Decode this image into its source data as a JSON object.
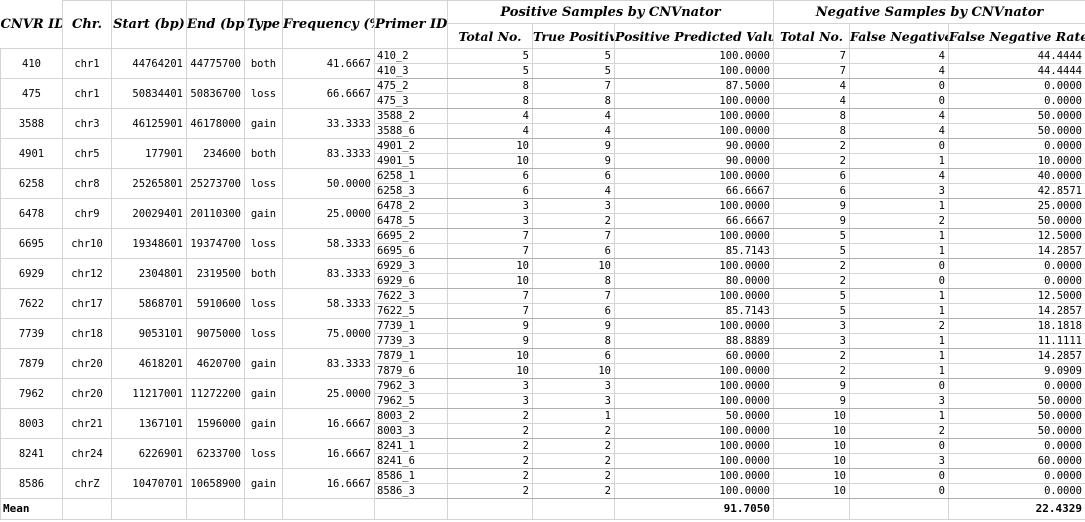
{
  "headers": {
    "cnvr_id": "CNVR ID",
    "chr": "Chr.",
    "start": "Start (bp)",
    "end": "End (bp)",
    "type": "Type",
    "frequency": "Frequency (%)",
    "primer_id": "Primer ID",
    "positive_group": "Positive Samples by CNVnator",
    "negative_group": "Negative Samples by CNVnator",
    "pos_total": "Total No.",
    "true_positive": "True Positive",
    "ppv": "Positive Predicted Value (%)",
    "neg_total": "Total No.",
    "false_negative": "False Negative",
    "fnr": "False Negative Rate(%)"
  },
  "rows": [
    {
      "id": "410",
      "chr": "chr1",
      "start": "44764201",
      "end": "44775700",
      "type": "both",
      "freq": "41.6667",
      "primers": [
        {
          "p": "410_2",
          "pt": "5",
          "tp": "5",
          "ppv": "100.0000",
          "nt": "7",
          "fn": "4",
          "fnr": "44.4444"
        },
        {
          "p": "410_3",
          "pt": "5",
          "tp": "5",
          "ppv": "100.0000",
          "nt": "7",
          "fn": "4",
          "fnr": "44.4444"
        }
      ]
    },
    {
      "id": "475",
      "chr": "chr1",
      "start": "50834401",
      "end": "50836700",
      "type": "loss",
      "freq": "66.6667",
      "primers": [
        {
          "p": "475_2",
          "pt": "8",
          "tp": "7",
          "ppv": "87.5000",
          "nt": "4",
          "fn": "0",
          "fnr": "0.0000"
        },
        {
          "p": "475_3",
          "pt": "8",
          "tp": "8",
          "ppv": "100.0000",
          "nt": "4",
          "fn": "0",
          "fnr": "0.0000"
        }
      ]
    },
    {
      "id": "3588",
      "chr": "chr3",
      "start": "46125901",
      "end": "46178000",
      "type": "gain",
      "freq": "33.3333",
      "primers": [
        {
          "p": "3588_2",
          "pt": "4",
          "tp": "4",
          "ppv": "100.0000",
          "nt": "8",
          "fn": "4",
          "fnr": "50.0000"
        },
        {
          "p": "3588_6",
          "pt": "4",
          "tp": "4",
          "ppv": "100.0000",
          "nt": "8",
          "fn": "4",
          "fnr": "50.0000"
        }
      ]
    },
    {
      "id": "4901",
      "chr": "chr5",
      "start": "177901",
      "end": "234600",
      "type": "both",
      "freq": "83.3333",
      "primers": [
        {
          "p": "4901_2",
          "pt": "10",
          "tp": "9",
          "ppv": "90.0000",
          "nt": "2",
          "fn": "0",
          "fnr": "0.0000"
        },
        {
          "p": "4901_5",
          "pt": "10",
          "tp": "9",
          "ppv": "90.0000",
          "nt": "2",
          "fn": "1",
          "fnr": "10.0000"
        }
      ]
    },
    {
      "id": "6258",
      "chr": "chr8",
      "start": "25265801",
      "end": "25273700",
      "type": "loss",
      "freq": "50.0000",
      "primers": [
        {
          "p": "6258_1",
          "pt": "6",
          "tp": "6",
          "ppv": "100.0000",
          "nt": "6",
          "fn": "4",
          "fnr": "40.0000"
        },
        {
          "p": "6258_3",
          "pt": "6",
          "tp": "4",
          "ppv": "66.6667",
          "nt": "6",
          "fn": "3",
          "fnr": "42.8571"
        }
      ]
    },
    {
      "id": "6478",
      "chr": "chr9",
      "start": "20029401",
      "end": "20110300",
      "type": "gain",
      "freq": "25.0000",
      "primers": [
        {
          "p": "6478_2",
          "pt": "3",
          "tp": "3",
          "ppv": "100.0000",
          "nt": "9",
          "fn": "1",
          "fnr": "25.0000"
        },
        {
          "p": "6478_5",
          "pt": "3",
          "tp": "2",
          "ppv": "66.6667",
          "nt": "9",
          "fn": "2",
          "fnr": "50.0000"
        }
      ]
    },
    {
      "id": "6695",
      "chr": "chr10",
      "start": "19348601",
      "end": "19374700",
      "type": "loss",
      "freq": "58.3333",
      "primers": [
        {
          "p": "6695_2",
          "pt": "7",
          "tp": "7",
          "ppv": "100.0000",
          "nt": "5",
          "fn": "1",
          "fnr": "12.5000"
        },
        {
          "p": "6695_6",
          "pt": "7",
          "tp": "6",
          "ppv": "85.7143",
          "nt": "5",
          "fn": "1",
          "fnr": "14.2857"
        }
      ]
    },
    {
      "id": "6929",
      "chr": "chr12",
      "start": "2304801",
      "end": "2319500",
      "type": "both",
      "freq": "83.3333",
      "primers": [
        {
          "p": "6929_3",
          "pt": "10",
          "tp": "10",
          "ppv": "100.0000",
          "nt": "2",
          "fn": "0",
          "fnr": "0.0000"
        },
        {
          "p": "6929_6",
          "pt": "10",
          "tp": "8",
          "ppv": "80.0000",
          "nt": "2",
          "fn": "0",
          "fnr": "0.0000"
        }
      ]
    },
    {
      "id": "7622",
      "chr": "chr17",
      "start": "5868701",
      "end": "5910600",
      "type": "loss",
      "freq": "58.3333",
      "primers": [
        {
          "p": "7622_3",
          "pt": "7",
          "tp": "7",
          "ppv": "100.0000",
          "nt": "5",
          "fn": "1",
          "fnr": "12.5000"
        },
        {
          "p": "7622_5",
          "pt": "7",
          "tp": "6",
          "ppv": "85.7143",
          "nt": "5",
          "fn": "1",
          "fnr": "14.2857"
        }
      ]
    },
    {
      "id": "7739",
      "chr": "chr18",
      "start": "9053101",
      "end": "9075000",
      "type": "loss",
      "freq": "75.0000",
      "primers": [
        {
          "p": "7739_1",
          "pt": "9",
          "tp": "9",
          "ppv": "100.0000",
          "nt": "3",
          "fn": "2",
          "fnr": "18.1818"
        },
        {
          "p": "7739_3",
          "pt": "9",
          "tp": "8",
          "ppv": "88.8889",
          "nt": "3",
          "fn": "1",
          "fnr": "11.1111"
        }
      ]
    },
    {
      "id": "7879",
      "chr": "chr20",
      "start": "4618201",
      "end": "4620700",
      "type": "gain",
      "freq": "83.3333",
      "primers": [
        {
          "p": "7879_1",
          "pt": "10",
          "tp": "6",
          "ppv": "60.0000",
          "nt": "2",
          "fn": "1",
          "fnr": "14.2857"
        },
        {
          "p": "7879_6",
          "pt": "10",
          "tp": "10",
          "ppv": "100.0000",
          "nt": "2",
          "fn": "1",
          "fnr": "9.0909"
        }
      ]
    },
    {
      "id": "7962",
      "chr": "chr20",
      "start": "11217001",
      "end": "11272200",
      "type": "gain",
      "freq": "25.0000",
      "primers": [
        {
          "p": "7962_3",
          "pt": "3",
          "tp": "3",
          "ppv": "100.0000",
          "nt": "9",
          "fn": "0",
          "fnr": "0.0000"
        },
        {
          "p": "7962_5",
          "pt": "3",
          "tp": "3",
          "ppv": "100.0000",
          "nt": "9",
          "fn": "3",
          "fnr": "50.0000"
        }
      ]
    },
    {
      "id": "8003",
      "chr": "chr21",
      "start": "1367101",
      "end": "1596000",
      "type": "gain",
      "freq": "16.6667",
      "primers": [
        {
          "p": "8003_2",
          "pt": "2",
          "tp": "1",
          "ppv": "50.0000",
          "nt": "10",
          "fn": "1",
          "fnr": "50.0000"
        },
        {
          "p": "8003_3",
          "pt": "2",
          "tp": "2",
          "ppv": "100.0000",
          "nt": "10",
          "fn": "2",
          "fnr": "50.0000"
        }
      ]
    },
    {
      "id": "8241",
      "chr": "chr24",
      "start": "6226901",
      "end": "6233700",
      "type": "loss",
      "freq": "16.6667",
      "primers": [
        {
          "p": "8241_1",
          "pt": "2",
          "tp": "2",
          "ppv": "100.0000",
          "nt": "10",
          "fn": "0",
          "fnr": "0.0000"
        },
        {
          "p": "8241_6",
          "pt": "2",
          "tp": "2",
          "ppv": "100.0000",
          "nt": "10",
          "fn": "3",
          "fnr": "60.0000"
        }
      ]
    },
    {
      "id": "8586",
      "chr": "chrZ",
      "start": "10470701",
      "end": "10658900",
      "type": "gain",
      "freq": "16.6667",
      "primers": [
        {
          "p": "8586_1",
          "pt": "2",
          "tp": "2",
          "ppv": "100.0000",
          "nt": "10",
          "fn": "0",
          "fnr": "0.0000"
        },
        {
          "p": "8586_3",
          "pt": "2",
          "tp": "2",
          "ppv": "100.0000",
          "nt": "10",
          "fn": "0",
          "fnr": "0.0000"
        }
      ]
    }
  ],
  "mean": {
    "label": "Mean",
    "ppv": "91.7050",
    "fnr": "22.4329"
  }
}
